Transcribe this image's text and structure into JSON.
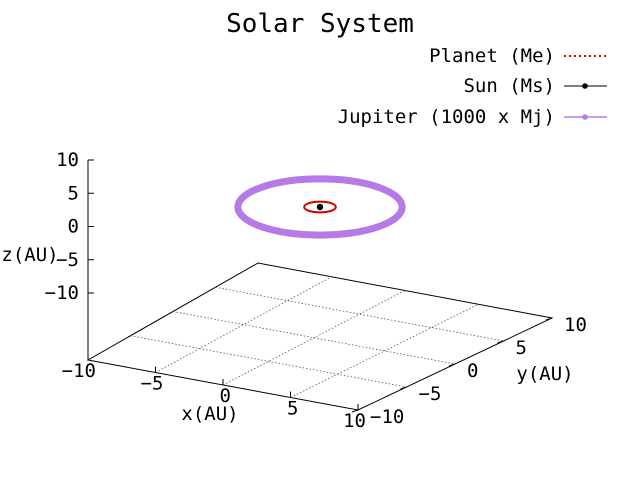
{
  "chart_data": {
    "type": "line",
    "projection": "3d",
    "title": "Solar System",
    "xlabel": "x(AU)",
    "ylabel": "y(AU)",
    "zlabel": "z(AU)",
    "xlim": [
      -10,
      10
    ],
    "ylim": [
      -10,
      10
    ],
    "zlim": [
      -10,
      10
    ],
    "x_ticks": [
      -10,
      -5,
      0,
      5,
      10
    ],
    "y_ticks": [
      -10,
      -5,
      0,
      5,
      10
    ],
    "z_ticks": [
      10,
      5,
      0,
      -5,
      -10
    ],
    "grid": true,
    "legend_position": "top-right",
    "series": [
      {
        "name": "Planet (Me)",
        "color": "#d40000",
        "style": "dotted",
        "orbit_radius_au": 1.0,
        "z": 0
      },
      {
        "name": "Sun (Ms)",
        "color": "#000000",
        "style": "point",
        "x": 0,
        "y": 0,
        "z": 0
      },
      {
        "name": "Jupiter (1000 x Mj)",
        "color": "#b57ae8",
        "style": "thick",
        "orbit_radius_au": 5.2,
        "z": 0
      }
    ]
  }
}
